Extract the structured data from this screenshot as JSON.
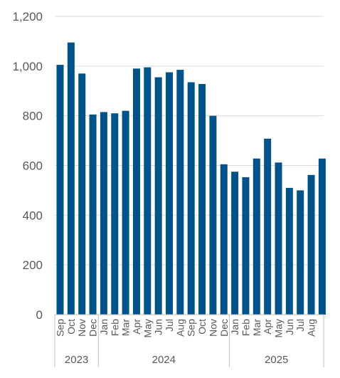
{
  "chart_data": {
    "type": "bar",
    "title": "",
    "xlabel": "",
    "ylabel": "",
    "ylim": [
      0,
      1200
    ],
    "yticks": [
      "0",
      "200",
      "400",
      "600",
      "800",
      "1,000",
      "1,200"
    ],
    "ytick_values": [
      0,
      200,
      400,
      600,
      800,
      1000,
      1200
    ],
    "grid": true,
    "legend": "none",
    "categories": [
      "Sep",
      "Oct",
      "Nov",
      "Dec",
      "Jan",
      "Feb",
      "Mar",
      "Apr",
      "May",
      "Jun",
      "Jul",
      "Aug",
      "Sep",
      "Oct",
      "Nov",
      "Dec",
      "Jan",
      "Feb",
      "Mar",
      "Apr",
      "May",
      "Jun",
      "Jul",
      "Aug",
      ""
    ],
    "values": [
      1005,
      1095,
      970,
      805,
      815,
      810,
      820,
      990,
      995,
      955,
      975,
      985,
      935,
      928,
      800,
      605,
      575,
      553,
      628,
      708,
      612,
      510,
      500,
      562,
      628
    ],
    "year_groups": [
      {
        "label": "2023",
        "count": 4
      },
      {
        "label": "2024",
        "count": 12
      },
      {
        "label": "2025",
        "count": 9
      }
    ],
    "colors": {
      "bar": "#005288",
      "grid": "#d9d9d9",
      "axis": "#bfbfbf",
      "text": "#595959"
    }
  }
}
